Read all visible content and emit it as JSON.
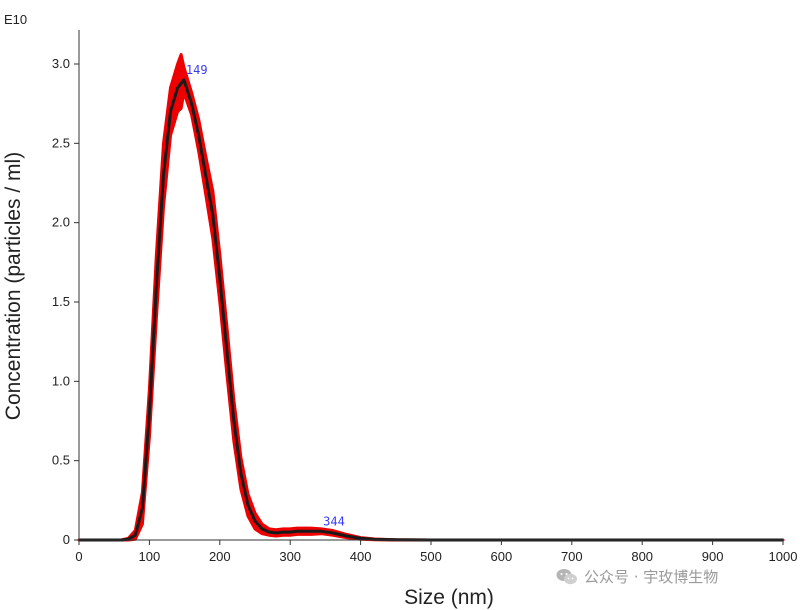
{
  "chart_data": {
    "type": "line",
    "xlabel": "Size (nm)",
    "ylabel": "Concentration (particles / ml)",
    "exponent_label": "E10",
    "xlim": [
      0,
      1000
    ],
    "ylim": [
      0,
      3.2
    ],
    "x_ticks": [
      "0",
      "100",
      "200",
      "300",
      "400",
      "500",
      "600",
      "700",
      "800",
      "900",
      "1000"
    ],
    "x_tick_values": [
      0,
      100,
      200,
      300,
      400,
      500,
      600,
      700,
      800,
      900,
      1000
    ],
    "y_ticks": [
      "0",
      "0.5",
      "1.0",
      "1.5",
      "2.0",
      "2.5",
      "3.0"
    ],
    "y_tick_values": [
      0,
      0.5,
      1.0,
      1.5,
      2.0,
      2.5,
      3.0
    ],
    "grid": false,
    "series": [
      {
        "role": "mean",
        "color": "#1a1a1a",
        "x": [
          0,
          60,
          70,
          80,
          90,
          100,
          110,
          120,
          130,
          140,
          149,
          160,
          170,
          180,
          190,
          200,
          210,
          220,
          230,
          240,
          250,
          260,
          270,
          280,
          290,
          300,
          310,
          320,
          330,
          344,
          360,
          380,
          400,
          420,
          450,
          500,
          600,
          700,
          800,
          900,
          1000
        ],
        "y": [
          0,
          0,
          0.005,
          0.03,
          0.2,
          0.8,
          1.6,
          2.3,
          2.7,
          2.85,
          2.9,
          2.75,
          2.55,
          2.3,
          2.05,
          1.65,
          1.2,
          0.75,
          0.42,
          0.22,
          0.12,
          0.07,
          0.05,
          0.045,
          0.05,
          0.05,
          0.055,
          0.055,
          0.055,
          0.055,
          0.045,
          0.025,
          0.01,
          0.004,
          0.001,
          0,
          0,
          0,
          0,
          0,
          0
        ]
      },
      {
        "role": "error",
        "color": "#ee0000",
        "x": [
          0,
          60,
          70,
          80,
          90,
          100,
          110,
          120,
          130,
          140,
          145,
          149,
          160,
          170,
          180,
          190,
          200,
          210,
          220,
          230,
          240,
          250,
          260,
          270,
          280,
          290,
          300,
          310,
          320,
          330,
          344,
          360,
          380,
          400,
          420,
          450,
          500,
          600,
          700,
          800,
          900,
          1000
        ],
        "upper": [
          0,
          0,
          0.01,
          0.06,
          0.3,
          0.95,
          1.8,
          2.5,
          2.85,
          3.0,
          3.06,
          2.98,
          2.82,
          2.65,
          2.42,
          2.2,
          1.8,
          1.35,
          0.88,
          0.52,
          0.29,
          0.17,
          0.1,
          0.07,
          0.065,
          0.07,
          0.07,
          0.075,
          0.075,
          0.075,
          0.07,
          0.06,
          0.035,
          0.015,
          0.006,
          0.002,
          0,
          0,
          0,
          0,
          0,
          0
        ],
        "lower": [
          0,
          0,
          0,
          0.005,
          0.1,
          0.65,
          1.4,
          2.1,
          2.55,
          2.7,
          2.72,
          2.82,
          2.68,
          2.45,
          2.18,
          1.9,
          1.5,
          1.05,
          0.62,
          0.32,
          0.15,
          0.07,
          0.04,
          0.03,
          0.025,
          0.03,
          0.03,
          0.035,
          0.035,
          0.035,
          0.04,
          0.03,
          0.015,
          0.005,
          0.001,
          0,
          0,
          0,
          0,
          0,
          0,
          0
        ]
      }
    ],
    "annotations": [
      {
        "text": "149",
        "x": 149,
        "y": 2.9
      },
      {
        "text": "344",
        "x": 344,
        "y": 0.055
      }
    ]
  },
  "watermark": {
    "text": "公众号 · 宇玫博生物"
  }
}
